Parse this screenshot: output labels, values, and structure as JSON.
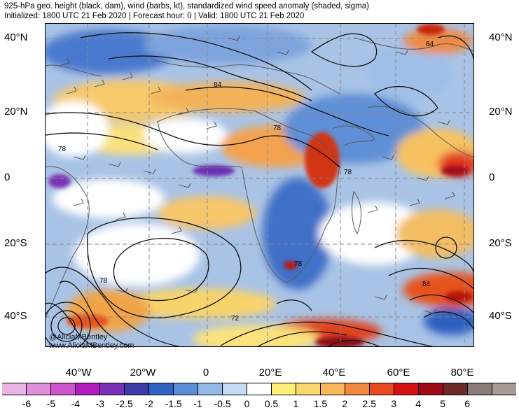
{
  "title": {
    "line1": "925-hPa geo. height (black, dam), wind (barbs, kt), standardized wind speed anomaly (shaded, sigma)",
    "line2": "Initialized: 1800 UTC 21 Feb 2020 | Forecast hour: 0 | Valid: 1800 UTC 21 Feb 2020"
  },
  "lat_labels": [
    "40°N",
    "20°N",
    "0",
    "20°S",
    "40°S"
  ],
  "lon_labels": [
    "40°W",
    "20°W",
    "0",
    "20°E",
    "40°E",
    "60°E",
    "80°E"
  ],
  "contour_labels": [
    "84",
    "78",
    "78",
    "78",
    "84",
    "78",
    "78",
    "84",
    "72"
  ],
  "watermark": [
    "@AliciaMBentley",
    "www.AliciaMBentley.com"
  ],
  "colorbar": {
    "tick_labels": [
      "-6",
      "-5",
      "-4",
      "-3",
      "-2.5",
      "-2",
      "-1.5",
      "-1",
      "-0.5",
      "0",
      "0.5",
      "1",
      "1.5",
      "2",
      "2.5",
      "3",
      "4",
      "5",
      "6"
    ],
    "colors": [
      "#e8b4e6",
      "#df8fdc",
      "#cf55cc",
      "#b21cbf",
      "#7a2fb8",
      "#3d3aa8",
      "#2f63c4",
      "#5a8fd8",
      "#95b9e6",
      "#c4dcf2",
      "#ffffff",
      "#fdf079",
      "#fbd86f",
      "#f8b85b",
      "#f2873e",
      "#e9491f",
      "#d51111",
      "#9e0a15",
      "#6a2a2a",
      "#8a7a78",
      "#a89a96"
    ]
  }
}
